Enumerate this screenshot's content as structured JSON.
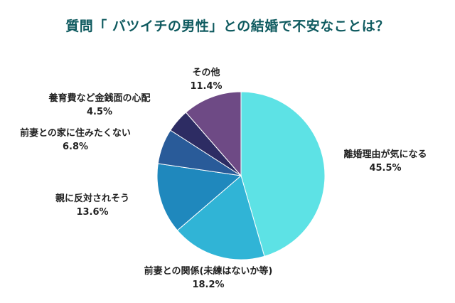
{
  "chart_data": {
    "type": "pie",
    "title": "質問「 バツイチの男性」との結婚で不安なことは？",
    "slices": [
      {
        "label": "離婚理由が気になる",
        "value": 45.5,
        "display": "45.5%",
        "color": "#5de2e5"
      },
      {
        "label": "前妻との関係(未練はないか等)",
        "value": 18.2,
        "display": "18.2%",
        "color": "#30b4d6"
      },
      {
        "label": "親に反対されそう",
        "value": 13.6,
        "display": "13.6%",
        "color": "#1f88bd"
      },
      {
        "label": "前妻との家に住みたくない",
        "value": 6.8,
        "display": "6.8%",
        "color": "#295b99"
      },
      {
        "label": "養育費など金銭面の心配",
        "value": 4.5,
        "display": "4.5%",
        "color": "#2d2c63"
      },
      {
        "label": "その他",
        "value": 11.4,
        "display": "11.4%",
        "color": "#6e4a85"
      }
    ],
    "start_angle": "12 o'clock",
    "direction": "clockwise"
  }
}
